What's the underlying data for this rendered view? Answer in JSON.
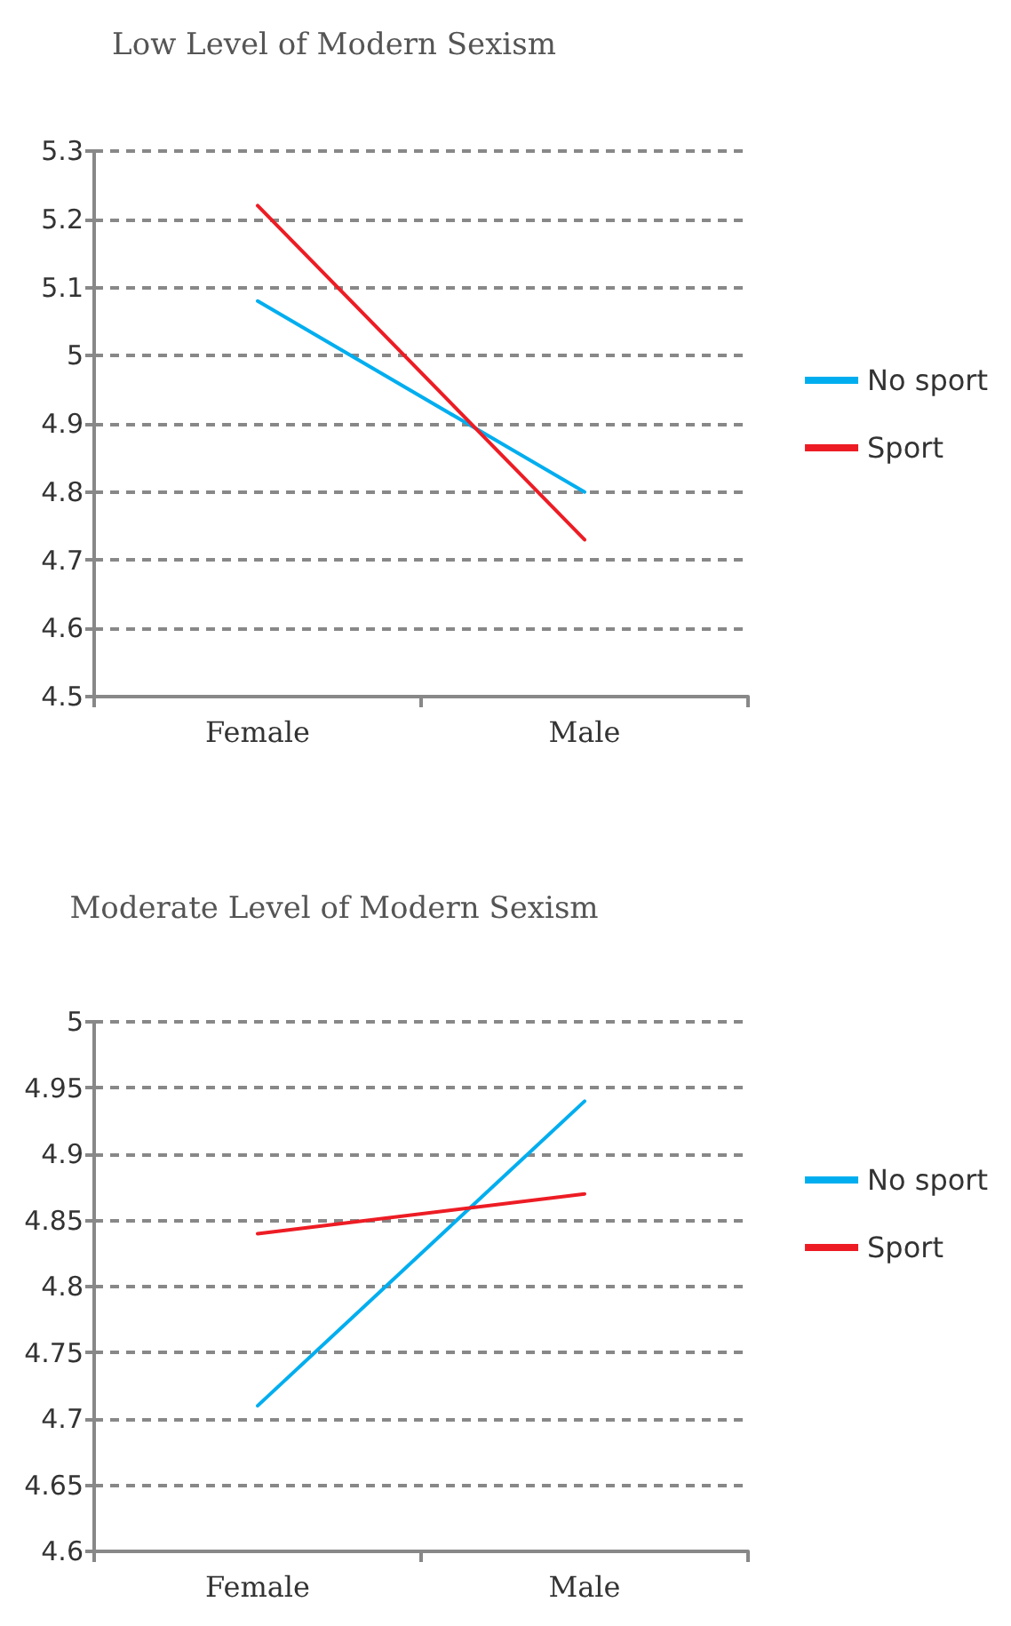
{
  "chart_data": [
    {
      "type": "line",
      "title": "Low Level of Modern Sexism",
      "categories": [
        "Female",
        "Male"
      ],
      "series": [
        {
          "name": "No sport",
          "color": "#00aeef",
          "values": [
            5.08,
            4.8
          ]
        },
        {
          "name": "Sport",
          "color": "#ed1c24",
          "values": [
            5.22,
            4.73
          ]
        }
      ],
      "ylim": [
        4.5,
        5.3
      ],
      "yticks": [
        4.5,
        4.6,
        4.7,
        4.8,
        4.9,
        5,
        5.1,
        5.2,
        5.3
      ],
      "grid": "y",
      "legend": "right",
      "marker": "none",
      "line_style": "solid"
    },
    {
      "type": "line",
      "title": "Moderate Level of Modern Sexism",
      "categories": [
        "Female",
        "Male"
      ],
      "series": [
        {
          "name": "No sport",
          "color": "#00aeef",
          "values": [
            4.71,
            4.94
          ]
        },
        {
          "name": "Sport",
          "color": "#ed1c24",
          "values": [
            4.84,
            4.87
          ]
        }
      ],
      "ylim": [
        4.6,
        5
      ],
      "yticks": [
        4.6,
        4.65,
        4.7,
        4.75,
        4.8,
        4.85,
        4.9,
        4.95,
        5
      ],
      "grid": "y",
      "legend": "right",
      "marker": "none",
      "line_style": "solid"
    }
  ]
}
